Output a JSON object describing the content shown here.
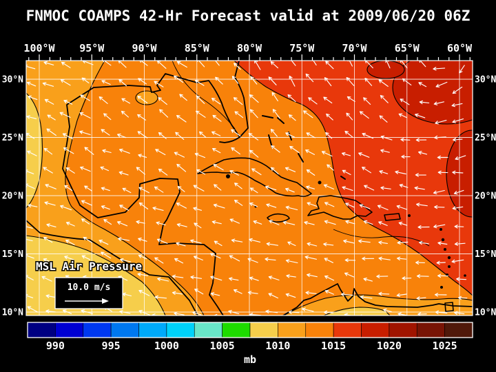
{
  "title": "FNMOC COAMPS 42-Hr Forecast valid at 2009/06/20 06Z",
  "map": {
    "field_label": "MSL Air Pressure",
    "wind_reference_label": "10.0 m/s",
    "x_axis": {
      "labels": [
        "100°W",
        "95°W",
        "90°W",
        "85°W",
        "80°W",
        "75°W",
        "70°W",
        "65°W",
        "60°W"
      ]
    },
    "y_axis": {
      "labels": [
        "30°N",
        "25°N",
        "20°N",
        "15°N",
        "10°N"
      ]
    }
  },
  "colorbar": {
    "unit": "mb",
    "tick_labels": [
      "990",
      "995",
      "1000",
      "1005",
      "1010",
      "1015",
      "1020",
      "1025"
    ],
    "segment_colors": [
      "#000082",
      "#0000D2",
      "#0038F0",
      "#0078F0",
      "#00AAFA",
      "#00D2FA",
      "#69E6C8",
      "#1EDC00",
      "#F6CE4B",
      "#F9A01B",
      "#F8820A",
      "#E8380B",
      "#C81E00",
      "#A01400",
      "#781405",
      "#50190A"
    ],
    "range_mb": [
      987.5,
      1027.5
    ],
    "interval_mb": 2.5
  },
  "chart_data": {
    "type": "heatmap",
    "title": "FNMOC COAMPS 42-Hr Forecast valid at 2009/06/20 06Z",
    "model": "FNMOC COAMPS",
    "forecast_hour": "42-Hr",
    "valid_time": "2009/06/20 06Z",
    "field": "MSL Air Pressure",
    "unit": "mb",
    "lon_ticks_degW": [
      100,
      95,
      90,
      85,
      80,
      75,
      70,
      65,
      60
    ],
    "lat_ticks_degN": [
      30,
      25,
      20,
      15,
      10
    ],
    "colorbar_ticks_mb": [
      990,
      995,
      1000,
      1005,
      1010,
      1015,
      1020,
      1025
    ],
    "palette": {
      "yellow": "#F6CE4B",
      "orange_yellow": "#F9A01B",
      "orange": "#F8820A",
      "red": "#E8380B",
      "dark_red": "#C81E00"
    },
    "wind_vectors": {
      "reference": "10.0 m/s",
      "color": "#FFFFFF",
      "flow": "easterly trade winds over the Caribbean with anticyclonic turning around a subtropical high near the northeast corner; northwestward flow over the Gulf of Mexico"
    },
    "estimated_pressure_grid_mb": {
      "lons_degW": [
        100,
        95,
        90,
        85,
        80,
        75,
        70,
        65,
        60
      ],
      "lats_degN": [
        30,
        25,
        20,
        15,
        10
      ],
      "values_mb": [
        [
          1011,
          1013,
          1013,
          1014,
          1016,
          1017,
          1019,
          1021,
          1022
        ],
        [
          1011,
          1013,
          1014,
          1014,
          1015,
          1016,
          1017,
          1018,
          1019
        ],
        [
          1009,
          1012,
          1013,
          1013,
          1014,
          1014,
          1015,
          1016,
          1017
        ],
        [
          1008,
          1011,
          1012,
          1013,
          1013,
          1013,
          1014,
          1015,
          1016
        ],
        [
          1008,
          1008,
          1009,
          1011,
          1012,
          1011,
          1010,
          1010,
          1011
        ]
      ],
      "note": "values estimated from filled-contour colors against the colorbar"
    },
    "features": [
      {
        "name": "subtropical high",
        "approx_location": "65W-60W, 26N-31N",
        "approx_value_mb": "1018-1022"
      },
      {
        "name": "lower pressure / eastern Pacific",
        "approx_location": "west of 90W south of 15N",
        "approx_value_mb": "1008-1010"
      },
      {
        "name": "weak low near Louisiana coast",
        "approx_location": "90W, 28.5N",
        "approx_value_mb": "1010-1012.5"
      }
    ]
  }
}
